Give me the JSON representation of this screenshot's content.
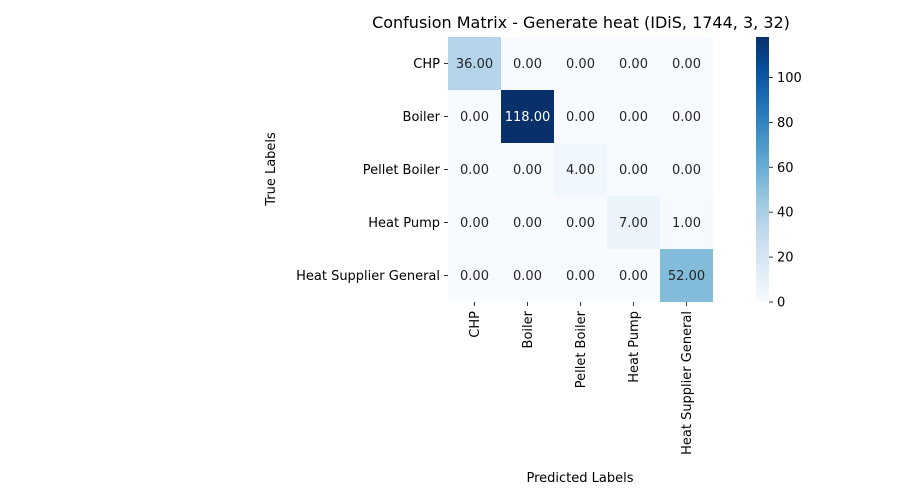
{
  "chart_data": {
    "type": "heatmap",
    "title": "Confusion Matrix - Generate heat (IDiS, 1744, 3, 32)",
    "xlabel": "Predicted Labels",
    "ylabel": "True Labels",
    "x_categories": [
      "CHP",
      "Boiler",
      "Pellet Boiler",
      "Heat Pump",
      "Heat Supplier General"
    ],
    "y_categories": [
      "CHP",
      "Boiler",
      "Pellet Boiler",
      "Heat Pump",
      "Heat Supplier General"
    ],
    "matrix": [
      [
        36,
        0,
        0,
        0,
        0
      ],
      [
        0,
        118,
        0,
        0,
        0
      ],
      [
        0,
        0,
        4,
        0,
        0
      ],
      [
        0,
        0,
        0,
        7,
        1
      ],
      [
        0,
        0,
        0,
        0,
        52
      ]
    ],
    "cell_labels": [
      [
        "36.00",
        "0.00",
        "0.00",
        "0.00",
        "0.00"
      ],
      [
        "0.00",
        "118.00",
        "0.00",
        "0.00",
        "0.00"
      ],
      [
        "0.00",
        "0.00",
        "4.00",
        "0.00",
        "0.00"
      ],
      [
        "0.00",
        "0.00",
        "0.00",
        "7.00",
        "1.00"
      ],
      [
        "0.00",
        "0.00",
        "0.00",
        "0.00",
        "52.00"
      ]
    ],
    "colormap": "Blues",
    "colorbar": {
      "min": 0,
      "max": 118,
      "ticks": [
        0,
        20,
        40,
        60,
        80,
        100
      ],
      "tick_labels": [
        "0",
        "20",
        "40",
        "60",
        "80",
        "100"
      ]
    }
  }
}
